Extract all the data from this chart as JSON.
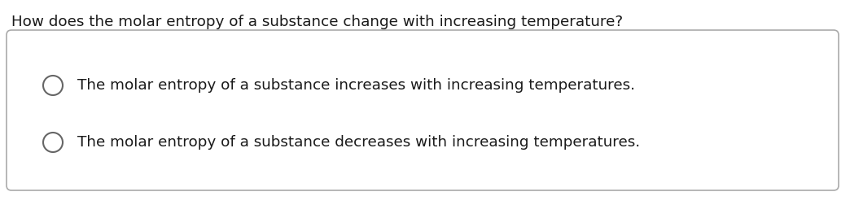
{
  "question": "How does the molar entropy of a substance change with increasing temperature?",
  "options": [
    "The molar entropy of a substance increases with increasing temperatures.",
    "The molar entropy of a substance decreases with increasing temperatures."
  ],
  "bg_color": "#ffffff",
  "question_color": "#1a1a1a",
  "option_color": "#1a1a1a",
  "box_edge_color": "#aaaaaa",
  "box_fill_color": "#ffffff",
  "question_fontsize": 13.2,
  "option_fontsize": 13.2,
  "circle_color": "#666666",
  "fig_width": 10.44,
  "fig_height": 2.68,
  "dpi": 100
}
